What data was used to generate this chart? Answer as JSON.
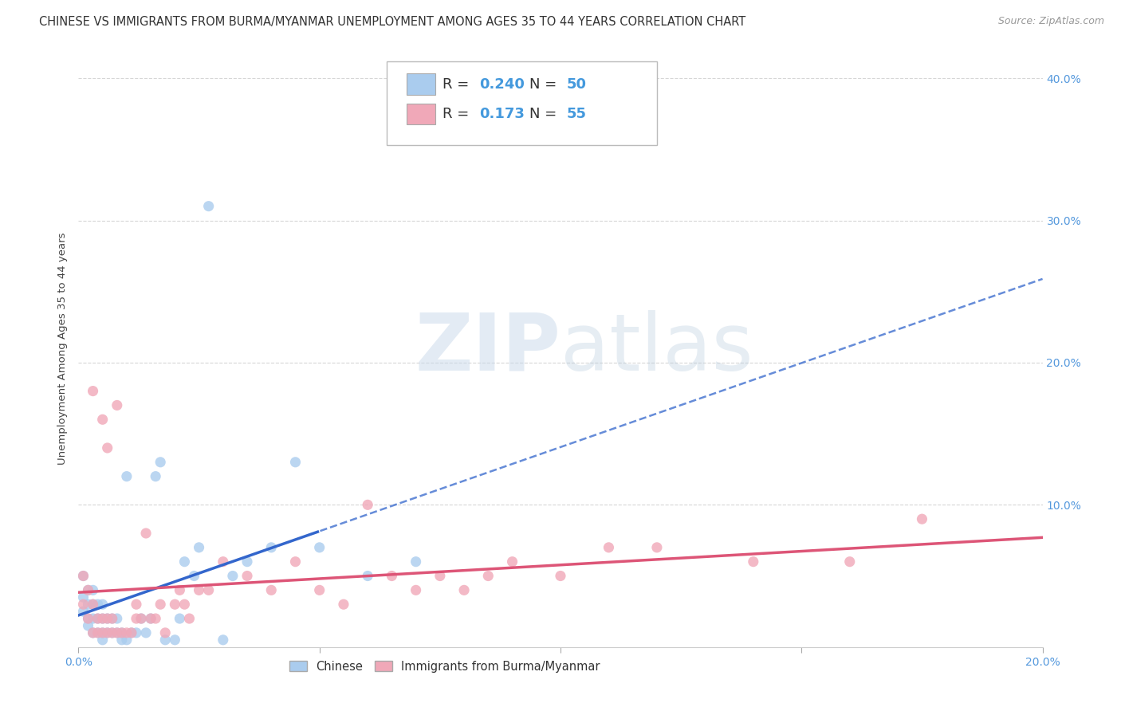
{
  "title": "CHINESE VS IMMIGRANTS FROM BURMA/MYANMAR UNEMPLOYMENT AMONG AGES 35 TO 44 YEARS CORRELATION CHART",
  "source": "Source: ZipAtlas.com",
  "ylabel": "Unemployment Among Ages 35 to 44 years",
  "xlim": [
    0.0,
    0.2
  ],
  "ylim": [
    0.0,
    0.42
  ],
  "xticks": [
    0.0,
    0.05,
    0.1,
    0.15,
    0.2
  ],
  "yticks": [
    0.0,
    0.1,
    0.2,
    0.3,
    0.4
  ],
  "xtick_labels": [
    "0.0%",
    "",
    "",
    "",
    "20.0%"
  ],
  "ytick_labels_right": [
    "",
    "10.0%",
    "20.0%",
    "30.0%",
    "40.0%"
  ],
  "chinese_R": 0.24,
  "chinese_N": 50,
  "burma_R": 0.173,
  "burma_N": 55,
  "chinese_color": "#aaccee",
  "burma_color": "#f0a8b8",
  "chinese_line_color": "#3366cc",
  "burma_line_color": "#dd5577",
  "tick_fontsize": 10,
  "watermark_color_zip": "#c0d4e8",
  "watermark_color_atlas": "#b8cce0",
  "background_color": "#ffffff",
  "grid_color": "#cccccc",
  "chinese_x": [
    0.001,
    0.001,
    0.001,
    0.002,
    0.002,
    0.002,
    0.002,
    0.003,
    0.003,
    0.003,
    0.003,
    0.004,
    0.004,
    0.004,
    0.005,
    0.005,
    0.005,
    0.005,
    0.006,
    0.006,
    0.007,
    0.007,
    0.008,
    0.008,
    0.009,
    0.009,
    0.01,
    0.01,
    0.011,
    0.012,
    0.013,
    0.014,
    0.015,
    0.016,
    0.017,
    0.018,
    0.02,
    0.021,
    0.022,
    0.024,
    0.025,
    0.027,
    0.03,
    0.032,
    0.035,
    0.04,
    0.045,
    0.05,
    0.06,
    0.07
  ],
  "chinese_y": [
    0.025,
    0.035,
    0.05,
    0.015,
    0.02,
    0.03,
    0.04,
    0.01,
    0.02,
    0.03,
    0.04,
    0.01,
    0.02,
    0.03,
    0.005,
    0.01,
    0.02,
    0.03,
    0.01,
    0.02,
    0.01,
    0.02,
    0.01,
    0.02,
    0.005,
    0.01,
    0.005,
    0.12,
    0.01,
    0.01,
    0.02,
    0.01,
    0.02,
    0.12,
    0.13,
    0.005,
    0.005,
    0.02,
    0.06,
    0.05,
    0.07,
    0.31,
    0.005,
    0.05,
    0.06,
    0.07,
    0.13,
    0.07,
    0.05,
    0.06
  ],
  "burma_x": [
    0.001,
    0.001,
    0.002,
    0.002,
    0.003,
    0.003,
    0.004,
    0.004,
    0.005,
    0.005,
    0.006,
    0.006,
    0.007,
    0.007,
    0.008,
    0.009,
    0.01,
    0.011,
    0.012,
    0.013,
    0.014,
    0.015,
    0.016,
    0.017,
    0.018,
    0.02,
    0.021,
    0.022,
    0.023,
    0.025,
    0.027,
    0.03,
    0.035,
    0.04,
    0.045,
    0.05,
    0.055,
    0.06,
    0.065,
    0.07,
    0.075,
    0.08,
    0.085,
    0.09,
    0.1,
    0.11,
    0.12,
    0.14,
    0.16,
    0.175,
    0.003,
    0.005,
    0.006,
    0.008,
    0.012
  ],
  "burma_y": [
    0.03,
    0.05,
    0.02,
    0.04,
    0.01,
    0.03,
    0.01,
    0.02,
    0.01,
    0.02,
    0.01,
    0.02,
    0.01,
    0.02,
    0.01,
    0.01,
    0.01,
    0.01,
    0.02,
    0.02,
    0.08,
    0.02,
    0.02,
    0.03,
    0.01,
    0.03,
    0.04,
    0.03,
    0.02,
    0.04,
    0.04,
    0.06,
    0.05,
    0.04,
    0.06,
    0.04,
    0.03,
    0.1,
    0.05,
    0.04,
    0.05,
    0.04,
    0.05,
    0.06,
    0.05,
    0.07,
    0.07,
    0.06,
    0.06,
    0.09,
    0.18,
    0.16,
    0.14,
    0.17,
    0.03
  ]
}
